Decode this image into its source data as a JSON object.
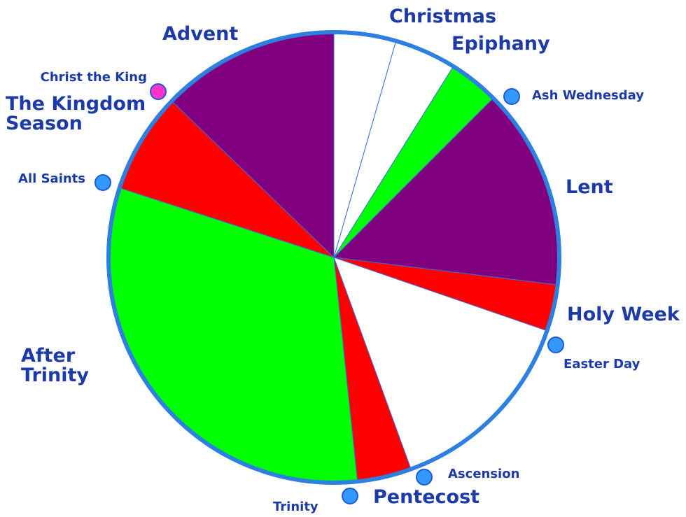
{
  "chart_data": {
    "type": "pie",
    "categories": [
      "Christmas",
      "Epiphany",
      null,
      "Lent",
      "Holy Week",
      null,
      "Pentecost",
      "After Trinity",
      "The Kingdom Season",
      "Advent"
    ],
    "values": [
      16,
      16,
      13,
      52,
      12,
      51,
      14,
      114,
      26,
      46
    ],
    "colors": [
      "#ffffff",
      "#ffffff",
      "#00ff00",
      "#800080",
      "#ff0000",
      "#ffffff",
      "#ff0000",
      "#00ff00",
      "#ff0000",
      "#800080"
    ],
    "markers": [
      {
        "label": "Christ the King",
        "color": "#ff33cc"
      },
      {
        "label": "Ash Wednesday",
        "color": "#3399ff"
      },
      {
        "label": "All Saints",
        "color": "#3399ff"
      },
      {
        "label": "Easter Day",
        "color": "#3399ff"
      },
      {
        "label": "Ascension",
        "color": "#3399ff"
      },
      {
        "label": "Trinity",
        "color": "#3399ff"
      }
    ]
  }
}
